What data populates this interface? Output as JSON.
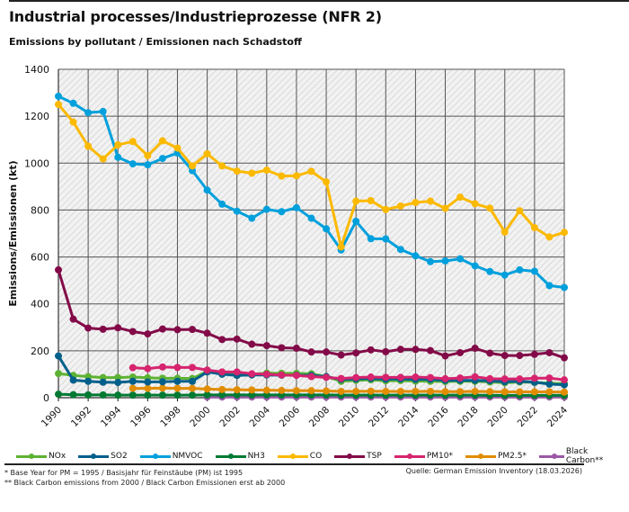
{
  "header": {
    "title": "Industrial processes/Industrieprozesse (NFR 2)",
    "subtitle": "Emissions by pollutant / Emissionen nach Schadstoff"
  },
  "footer": {
    "note1": "* Base Year for PM = 1995 / Basisjahr für Feinstäube (PM) ist 1995",
    "note2": "** Black Carbon emissions  from 2000 / Black Carbon Emissionen erst ab 2000",
    "source": "Quelle: German Emission Inventory (18.03.2026)"
  },
  "chart_data": {
    "type": "line",
    "title": "Industrial processes/Industrieprozesse (NFR 2)",
    "subtitle": "Emissions by pollutant / Emissionen nach Schadstoff",
    "xlabel": "",
    "ylabel": "Emissions/Emissionen (kt)",
    "ylim": [
      0,
      1400
    ],
    "yticks": [
      0,
      200,
      400,
      600,
      800,
      1000,
      1200,
      1400
    ],
    "xticks": [
      1990,
      1992,
      1994,
      1996,
      1998,
      2000,
      2002,
      2004,
      2006,
      2008,
      2010,
      2012,
      2014,
      2016,
      2018,
      2020,
      2022,
      2024
    ],
    "grid": true,
    "legend_position": "bottom",
    "x": [
      1990,
      1991,
      1992,
      1993,
      1994,
      1995,
      1996,
      1997,
      1998,
      1999,
      2000,
      2001,
      2002,
      2003,
      2004,
      2005,
      2006,
      2007,
      2008,
      2009,
      2010,
      2011,
      2012,
      2013,
      2014,
      2015,
      2016,
      2017,
      2018,
      2019,
      2020,
      2021,
      2022,
      2023,
      2024
    ],
    "series": [
      {
        "name": "NOx",
        "color": "#5db233",
        "values": [
          103,
          95,
          90,
          86,
          86,
          88,
          85,
          83,
          83,
          82,
          112,
          104,
          103,
          100,
          105,
          104,
          104,
          102,
          90,
          70,
          74,
          76,
          72,
          73,
          71,
          70,
          69,
          70,
          70,
          67,
          64,
          67,
          65,
          62,
          60
        ]
      },
      {
        "name": "SO2",
        "color": "#005f8a",
        "values": [
          178,
          75,
          70,
          66,
          65,
          70,
          67,
          68,
          70,
          70,
          110,
          100,
          95,
          97,
          97,
          96,
          96,
          95,
          90,
          78,
          80,
          82,
          79,
          80,
          78,
          78,
          74,
          74,
          74,
          72,
          68,
          70,
          66,
          58,
          55
        ]
      },
      {
        "name": "NMVOC",
        "color": "#00a0dc",
        "values": [
          1285,
          1255,
          1215,
          1220,
          1025,
          997,
          993,
          1020,
          1043,
          968,
          885,
          825,
          795,
          765,
          803,
          793,
          810,
          765,
          720,
          630,
          752,
          678,
          677,
          632,
          605,
          580,
          583,
          592,
          562,
          538,
          523,
          545,
          539,
          478,
          470
        ]
      },
      {
        "name": "NH3",
        "color": "#007a33",
        "values": [
          15,
          13,
          12,
          12,
          11,
          11,
          11,
          11,
          11,
          11,
          12,
          12,
          12,
          12,
          12,
          12,
          12,
          12,
          12,
          11,
          11,
          11,
          11,
          11,
          11,
          11,
          11,
          11,
          11,
          10,
          10,
          10,
          10,
          10,
          10
        ]
      },
      {
        "name": "CO",
        "color": "#fbb900",
        "values": [
          1250,
          1175,
          1072,
          1018,
          1078,
          1092,
          1032,
          1095,
          1064,
          988,
          1040,
          988,
          966,
          957,
          970,
          945,
          946,
          965,
          920,
          643,
          838,
          840,
          802,
          817,
          832,
          838,
          807,
          855,
          827,
          808,
          706,
          797,
          725,
          685,
          705
        ]
      },
      {
        "name": "TSP",
        "color": "#830a48",
        "values": [
          545,
          335,
          297,
          292,
          298,
          282,
          272,
          293,
          290,
          291,
          275,
          248,
          250,
          228,
          222,
          213,
          211,
          195,
          195,
          182,
          191,
          204,
          196,
          206,
          206,
          201,
          178,
          192,
          211,
          190,
          180,
          180,
          185,
          192,
          170
        ]
      },
      {
        "name": "PM10*",
        "color": "#d6246e",
        "values": [
          null,
          null,
          null,
          null,
          null,
          128,
          124,
          131,
          129,
          129,
          118,
          110,
          110,
          102,
          100,
          97,
          95,
          90,
          87,
          82,
          86,
          88,
          87,
          87,
          88,
          86,
          81,
          84,
          89,
          81,
          80,
          80,
          83,
          84,
          76
        ]
      },
      {
        "name": "PM2.5*",
        "color": "#e18d00",
        "values": [
          null,
          null,
          null,
          null,
          null,
          40,
          40,
          41,
          40,
          40,
          37,
          35,
          34,
          33,
          32,
          31,
          30,
          30,
          29,
          27,
          27,
          28,
          27,
          27,
          27,
          27,
          26,
          26,
          27,
          26,
          25,
          25,
          25,
          25,
          24
        ]
      },
      {
        "name": "Black Carbon**",
        "color": "#9b59a5",
        "values": [
          null,
          null,
          null,
          null,
          null,
          null,
          null,
          null,
          null,
          null,
          3,
          3,
          3,
          3,
          3,
          3,
          3,
          3,
          3,
          3,
          3,
          3,
          3,
          3,
          3,
          3,
          3,
          3,
          3,
          3,
          3,
          3,
          3,
          3,
          3
        ]
      }
    ]
  }
}
